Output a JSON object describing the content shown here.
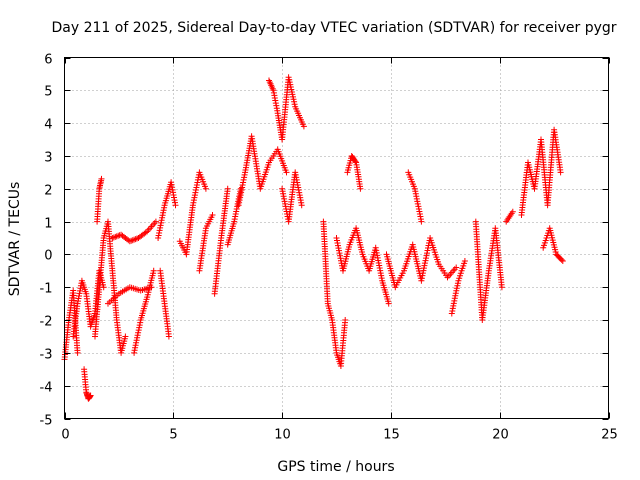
{
  "chart_data": {
    "type": "scatter",
    "title": "Day 211 of 2025, Sidereal Day-to-day VTEC variation (SDTVAR) for receiver pygr",
    "xlabel": "GPS time / hours",
    "ylabel": "SDTVAR / TECUs",
    "xlim": [
      0,
      25
    ],
    "ylim": [
      -5,
      6
    ],
    "xticks": [
      "0",
      "5",
      "10",
      "15",
      "20",
      "25"
    ],
    "yticks": [
      "-5",
      "-4",
      "-3",
      "-2",
      "-1",
      "0",
      "1",
      "2",
      "3",
      "4",
      "5",
      "6"
    ],
    "grid": true,
    "marker": "+",
    "series": [
      {
        "name": "SDTVAR",
        "color": "#ff0000",
        "segments": [
          {
            "x": [
              0.0,
              0.2,
              0.4,
              0.6
            ],
            "y": [
              -3.2,
              -2.0,
              -1.1,
              -3.0
            ]
          },
          {
            "x": [
              0.4,
              0.6,
              0.8,
              1.0,
              1.2,
              1.4,
              1.6,
              1.8
            ],
            "y": [
              -2.5,
              -1.5,
              -0.8,
              -1.2,
              -2.2,
              -1.8,
              -0.5,
              -1.0
            ]
          },
          {
            "x": [
              0.9,
              1.0,
              1.1,
              1.2
            ],
            "y": [
              -3.5,
              -4.2,
              -4.4,
              -4.3
            ]
          },
          {
            "x": [
              1.4,
              1.6,
              1.8,
              2.0,
              2.2,
              2.4,
              2.6,
              2.8
            ],
            "y": [
              -2.5,
              -1.0,
              0.5,
              1.0,
              -0.5,
              -2.0,
              -3.0,
              -2.5
            ]
          },
          {
            "x": [
              1.5,
              1.6,
              1.7
            ],
            "y": [
              1.0,
              2.0,
              2.3
            ]
          },
          {
            "x": [
              2.2,
              2.6,
              3.0,
              3.4,
              3.8,
              4.2
            ],
            "y": [
              0.5,
              0.6,
              0.4,
              0.5,
              0.7,
              1.0
            ]
          },
          {
            "x": [
              2.0,
              2.5,
              3.0,
              3.5,
              4.0
            ],
            "y": [
              -1.5,
              -1.2,
              -1.0,
              -1.1,
              -1.0
            ]
          },
          {
            "x": [
              3.2,
              3.5,
              3.8,
              4.1
            ],
            "y": [
              -3.0,
              -2.0,
              -1.3,
              -0.5
            ]
          },
          {
            "x": [
              4.3,
              4.6,
              4.9,
              5.1
            ],
            "y": [
              0.5,
              1.5,
              2.2,
              1.5
            ]
          },
          {
            "x": [
              4.4,
              4.6,
              4.8
            ],
            "y": [
              -0.5,
              -1.5,
              -2.5
            ]
          },
          {
            "x": [
              5.3,
              5.6,
              5.9,
              6.2,
              6.5
            ],
            "y": [
              0.4,
              0.0,
              1.5,
              2.5,
              2.0
            ]
          },
          {
            "x": [
              6.2,
              6.5,
              6.8
            ],
            "y": [
              -0.5,
              0.8,
              1.2
            ]
          },
          {
            "x": [
              6.9,
              7.2,
              7.5
            ],
            "y": [
              -1.2,
              0.5,
              2.0
            ]
          },
          {
            "x": [
              7.5,
              7.8,
              8.1
            ],
            "y": [
              0.3,
              1.0,
              2.0
            ]
          },
          {
            "x": [
              8.0,
              8.3,
              8.6,
              9.0,
              9.4,
              9.8,
              10.2
            ],
            "y": [
              1.5,
              2.5,
              3.6,
              2.0,
              2.8,
              3.2,
              2.5
            ]
          },
          {
            "x": [
              9.4,
              9.6,
              9.8,
              10.0,
              10.3,
              10.6,
              11.0
            ],
            "y": [
              5.3,
              5.0,
              4.3,
              3.5,
              5.4,
              4.5,
              3.9
            ]
          },
          {
            "x": [
              10.0,
              10.3,
              10.6,
              10.9
            ],
            "y": [
              2.0,
              1.0,
              2.5,
              1.5
            ]
          },
          {
            "x": [
              11.9,
              12.1,
              12.3,
              12.5,
              12.7,
              12.9
            ],
            "y": [
              1.0,
              -1.5,
              -2.0,
              -3.0,
              -3.4,
              -2.0
            ]
          },
          {
            "x": [
              12.5,
              12.8,
              13.1,
              13.4,
              13.7,
              14.0,
              14.3,
              14.6,
              14.9
            ],
            "y": [
              0.5,
              -0.5,
              0.3,
              0.8,
              0.0,
              -0.5,
              0.2,
              -0.8,
              -1.5
            ]
          },
          {
            "x": [
              13.0,
              13.2,
              13.4,
              13.6
            ],
            "y": [
              2.5,
              3.0,
              2.8,
              2.0
            ]
          },
          {
            "x": [
              14.8,
              15.2,
              15.6,
              16.0,
              16.4,
              16.8,
              17.2,
              17.6,
              18.0
            ],
            "y": [
              0.0,
              -1.0,
              -0.5,
              0.3,
              -0.8,
              0.5,
              -0.3,
              -0.7,
              -0.4
            ]
          },
          {
            "x": [
              15.8,
              16.1,
              16.4
            ],
            "y": [
              2.5,
              2.0,
              1.0
            ]
          },
          {
            "x": [
              17.8,
              18.1,
              18.4
            ],
            "y": [
              -1.8,
              -0.8,
              -0.2
            ]
          },
          {
            "x": [
              18.9,
              19.2,
              19.5,
              19.8,
              20.1
            ],
            "y": [
              1.0,
              -2.0,
              -0.5,
              0.8,
              -1.0
            ]
          },
          {
            "x": [
              20.3,
              20.6
            ],
            "y": [
              1.0,
              1.3
            ]
          },
          {
            "x": [
              21.0,
              21.3,
              21.6,
              21.9,
              22.2,
              22.5,
              22.8
            ],
            "y": [
              1.2,
              2.8,
              2.0,
              3.5,
              1.5,
              3.8,
              2.5
            ]
          },
          {
            "x": [
              22.0,
              22.3,
              22.6,
              22.9
            ],
            "y": [
              0.2,
              0.8,
              0.0,
              -0.2
            ]
          }
        ]
      }
    ]
  }
}
